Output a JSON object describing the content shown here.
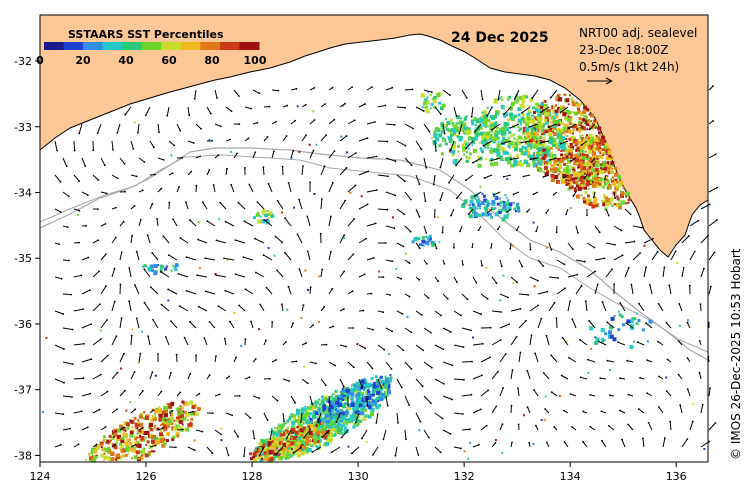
{
  "map": {
    "date": "24 Dec 2025",
    "product": "NRT00 adj. sealevel",
    "valid_time": "23-Dec 18:00Z",
    "vector_scale": "0.5m/s (1kt 24h)",
    "credit": "© IMOS 26-Dec-2025 10:53 Hobart",
    "lon_range": [
      124,
      136.6
    ],
    "lat_range": [
      -38.1,
      -31.3
    ],
    "x_ticks": [
      "124",
      "126",
      "128",
      "130",
      "132",
      "134",
      "136"
    ],
    "y_ticks": [
      "-32",
      "-33",
      "-34",
      "-35",
      "-36",
      "-37",
      "-38"
    ]
  },
  "colorbar": {
    "title": "SSTAARS SST Percentiles",
    "ticks": [
      "0",
      "20",
      "40",
      "60",
      "80",
      "100"
    ],
    "colors": [
      "#1a1a8c",
      "#1f3fd0",
      "#2f8fe8",
      "#25c8c8",
      "#2bc87a",
      "#6ad62a",
      "#c8dc28",
      "#f0b820",
      "#e07818",
      "#c83a14",
      "#a01010"
    ]
  },
  "colors": {
    "land": "#fdc896",
    "ocean": "#ffffff",
    "isobath": "#a8a8a8",
    "coast": "#000000"
  }
}
